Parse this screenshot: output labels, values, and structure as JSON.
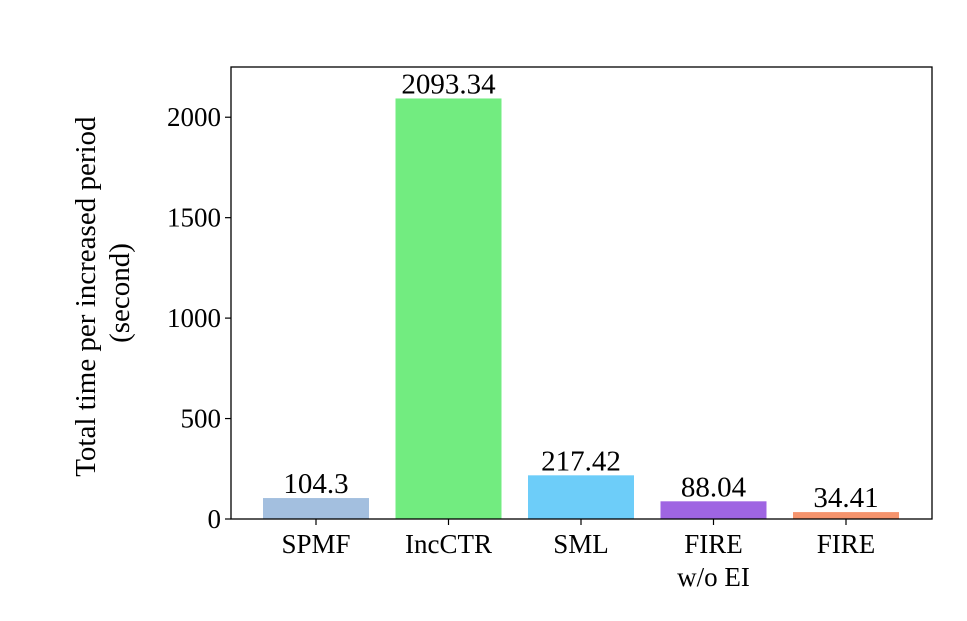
{
  "chart_data": {
    "type": "bar",
    "categories": [
      [
        "SPMF"
      ],
      [
        "IncCTR"
      ],
      [
        "SML"
      ],
      [
        "FIRE",
        "w/o EI"
      ],
      [
        "FIRE"
      ]
    ],
    "values": [
      104.3,
      2093.34,
      217.42,
      88.04,
      34.41
    ],
    "value_labels": [
      "104.3",
      "2093.34",
      "217.42",
      "88.04",
      "34.41"
    ],
    "colors": [
      "#a3bfdf",
      "#72ec80",
      "#6dcdf9",
      "#9f65e2",
      "#f5946d"
    ],
    "title": "",
    "xlabel": "",
    "ylabel_lines": [
      "Total time per increased period",
      "(second)"
    ],
    "ylim": [
      0,
      2250
    ],
    "yticks": [
      0,
      500,
      1000,
      1500,
      2000
    ],
    "grid": false
  }
}
